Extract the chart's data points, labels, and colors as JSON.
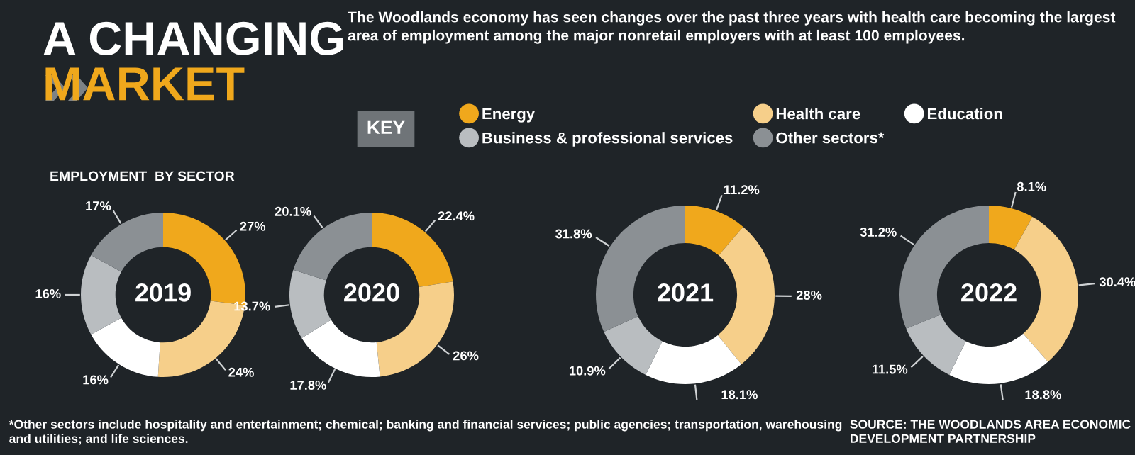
{
  "chart_data": [
    {
      "type": "other",
      "title": "A CHANGING\nMARKET",
      "subtitle": "The Woodlands economy has seen changes over the past three years with health care becoming the largest area of employment among the major nonretail employers with at least 100 employees.",
      "annotations": [
        "EMPLOYMENT  BY SECTOR",
        "*Other sectors include hospitality and entertainment; chemical; banking and financial services; public agencies; transportation, warehousing and utilities; and life sciences.",
        "SOURCE: THE WOODLANDS AREA ECONOMIC DEVELOPMENT PARTNERSHIP"
      ]
    },
    {
      "type": "donut",
      "title": "2019",
      "legend": "top",
      "legend_title": "KEY",
      "categories": [
        "Energy",
        "Health care",
        "Education",
        "Business & professional services",
        "Other sectors*"
      ],
      "values": [
        27,
        24,
        16,
        16,
        17
      ],
      "value_labels": [
        "27%",
        "24%",
        "16%",
        "16%",
        "17%"
      ],
      "colors": [
        "#f0a81c",
        "#f6cf8a",
        "#ffffff",
        "#b9bdc0",
        "#8b9094"
      ]
    },
    {
      "type": "donut",
      "title": "2020",
      "categories": [
        null,
        null,
        null,
        null,
        null
      ],
      "values": [
        22.4,
        26,
        17.8,
        13.7,
        20.1
      ],
      "value_labels": [
        "22.4%",
        "26%",
        "17.8%",
        "13.7%",
        "20.1%"
      ],
      "colors": [
        "#f0a81c",
        "#f6cf8a",
        "#ffffff",
        "#b9bdc0",
        "#8b9094"
      ]
    },
    {
      "type": "donut",
      "title": "2021",
      "categories": [
        null,
        null,
        null,
        null,
        null
      ],
      "values": [
        11.2,
        28,
        18.1,
        10.9,
        31.8
      ],
      "value_labels": [
        "11.2%",
        "28%",
        "18.1%",
        "10.9%",
        "31.8%"
      ],
      "colors": [
        "#f0a81c",
        "#f6cf8a",
        "#ffffff",
        "#b9bdc0",
        "#8b9094"
      ]
    },
    {
      "type": "donut",
      "title": "2022",
      "categories": [
        null,
        null,
        null,
        null,
        null
      ],
      "values": [
        8.1,
        30.4,
        18.8,
        11.5,
        31.2
      ],
      "value_labels": [
        "8.1%",
        "30.4%",
        "18.8%",
        "11.5%",
        "31.2%"
      ],
      "colors": [
        "#f0a81c",
        "#f6cf8a",
        "#ffffff",
        "#b9bdc0",
        "#8b9094"
      ]
    }
  ]
}
